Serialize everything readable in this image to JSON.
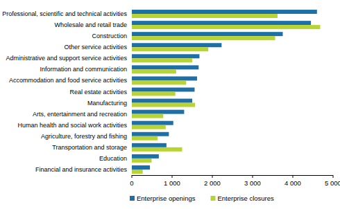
{
  "chart_data": {
    "type": "bar",
    "orientation": "horizontal",
    "categories": [
      "Professional, scientific and technical activities",
      "Wholesale and retail trade",
      "Construction",
      "Other service activities",
      "Administrative and support service activities",
      "Information and communication",
      "Accommodation and food service activities",
      "Real estate activities",
      "Manufacturing",
      "Arts, entertainment and recreation",
      "Human health and social work activities",
      "Agriculture, forestry and fishing",
      "Transportation and storage",
      "Education",
      "Financial and insurance activities"
    ],
    "series": [
      {
        "name": "Enterprise openings",
        "color": "#1d6fa8",
        "values": [
          4600,
          4450,
          3750,
          2230,
          1680,
          1660,
          1620,
          1560,
          1500,
          1300,
          1030,
          920,
          860,
          670,
          450
        ]
      },
      {
        "name": "Enterprise closures",
        "color": "#b7d433",
        "values": [
          3620,
          4680,
          3560,
          1900,
          1500,
          1100,
          1350,
          1080,
          1570,
          780,
          840,
          640,
          1250,
          490,
          270
        ]
      }
    ],
    "xlim": [
      0,
      5000
    ],
    "xticks": [
      0,
      {
        "value": 1000,
        "label": "1 000"
      },
      {
        "value": 2000,
        "label": "2 000"
      },
      {
        "value": 3000,
        "label": "3 000"
      },
      {
        "value": 4000,
        "label": "4 000"
      },
      {
        "value": 5000,
        "label": "5 000"
      }
    ],
    "grid": false,
    "legend": "bottom"
  }
}
